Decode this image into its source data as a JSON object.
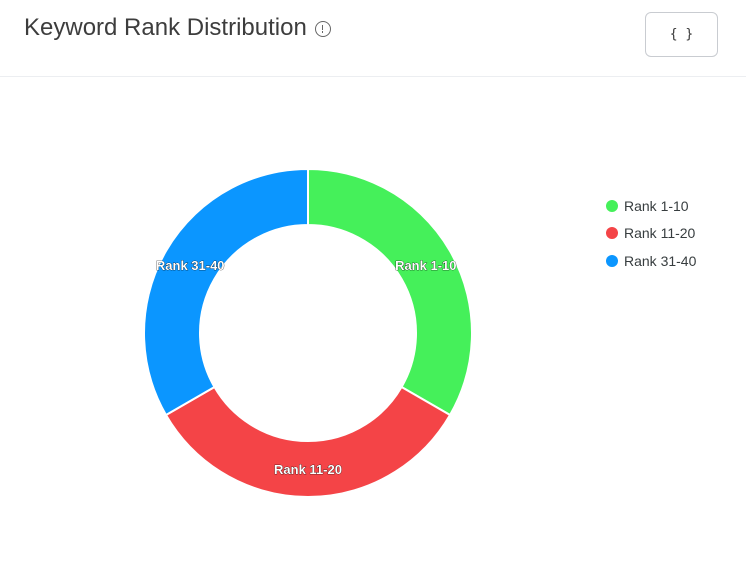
{
  "header": {
    "title": "Keyword Rank Distribution",
    "code_button_label": "{ }"
  },
  "chart_data": {
    "type": "pie",
    "variant": "donut",
    "title": "Keyword Rank Distribution",
    "categories": [
      "Rank 1-10",
      "Rank 11-20",
      "Rank 31-40"
    ],
    "values": [
      1,
      1,
      1
    ],
    "colors": [
      "#45f05a",
      "#f44447",
      "#0b96ff"
    ],
    "data_labels": [
      "Rank 1-10",
      "Rank 11-20",
      "Rank 31-40"
    ],
    "legend": "right"
  }
}
